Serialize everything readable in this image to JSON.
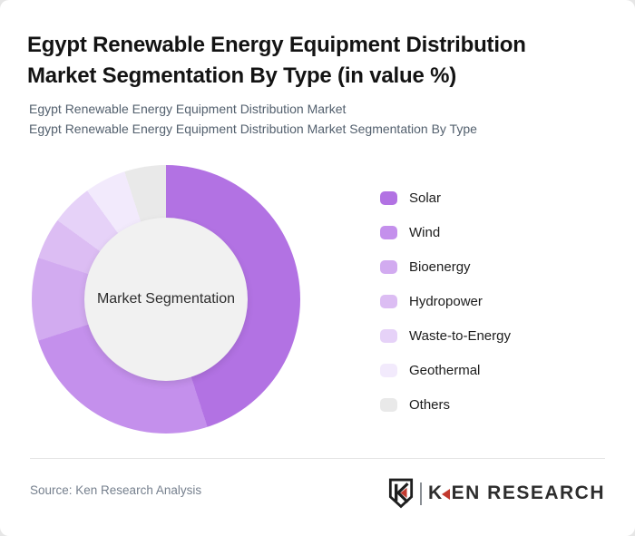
{
  "page": {
    "title": "Egypt Renewable Energy Equipment Distribution Market Segmentation By Type (in value %)",
    "subtitle_line1": "Egypt Renewable Energy Equipment Distribution Market",
    "subtitle_line2": "Egypt Renewable Energy Equipment Distribution Market Segmentation By Type"
  },
  "chart_data": {
    "type": "pie",
    "variant": "donut",
    "title": "Egypt Renewable Energy Equipment Distribution Market Segmentation By Type (in value %)",
    "center_label": "Market Segmentation",
    "categories": [
      "Solar",
      "Wind",
      "Bioenergy",
      "Hydropower",
      "Waste-to-Energy",
      "Geothermal",
      "Others"
    ],
    "values": [
      45,
      25,
      10,
      5,
      5,
      5,
      5
    ],
    "unit": "percent of market value",
    "colors": [
      "#b272e3",
      "#c490ec",
      "#d2abf0",
      "#dcbdf3",
      "#e6d2f8",
      "#f2eafc",
      "#e9e9e9"
    ],
    "hole_color": "#f1f1f1",
    "legend_position": "right",
    "start_angle_deg": 0,
    "clockwise": true
  },
  "footer": {
    "source": "Source: Ken Research Analysis",
    "logo": {
      "wordmark_k": "K",
      "wordmark_rest": "EN RESEARCH",
      "accent_color": "#c2392e"
    }
  }
}
